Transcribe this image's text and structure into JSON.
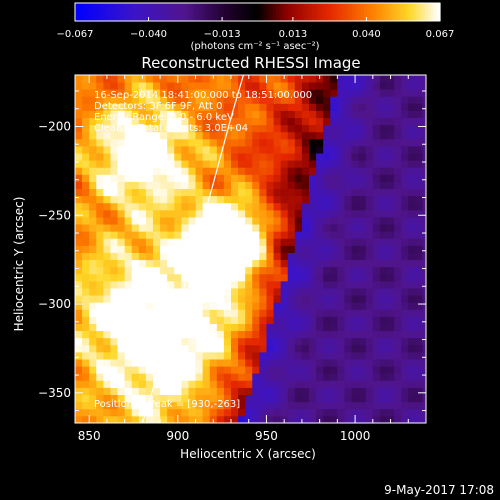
{
  "chart_data": {
    "type": "heatmap",
    "title": "Reconstructed RHESSI Image",
    "xlabel": "Heliocentric X (arcsec)",
    "ylabel": "Heliocentric Y (arcsec)",
    "xlim": [
      842,
      1040
    ],
    "ylim": [
      -367,
      -171
    ],
    "x_ticks": [
      850,
      900,
      950,
      1000
    ],
    "y_ticks": [
      -200,
      -250,
      -300,
      -350
    ],
    "colorbar": {
      "label": "(photons cm⁻² s⁻¹ asec⁻²)",
      "min": -0.067,
      "max": 0.067,
      "tick_values": [
        -0.067,
        -0.04,
        -0.013,
        0.013,
        0.04,
        0.067
      ],
      "tick_labels": [
        "−0.067",
        "−0.040",
        "−0.013",
        "0.013",
        "0.040",
        "0.067"
      ]
    },
    "annotations": [
      "16-Sep-2014 18:41:00.000 to 18:51:00.000",
      "Detectors: 3F 6F 9F, Att 0",
      "Energy Range: 3.0 - 6.0 keV",
      "Clean     Total counts: 3.0E+04"
    ],
    "peak_label": "Position of Peak = [930,-263]",
    "peak": {
      "x": 930,
      "y": -263
    },
    "limb": {
      "x": [
        880,
        890,
        900,
        910,
        920,
        930,
        937
      ],
      "y": [
        -367,
        -335,
        -303,
        -268,
        -232,
        -195,
        -171
      ]
    },
    "pixel_size_arcsec": 4,
    "grid": false
  },
  "footer": {
    "date": "9-May-2017 17:08"
  }
}
